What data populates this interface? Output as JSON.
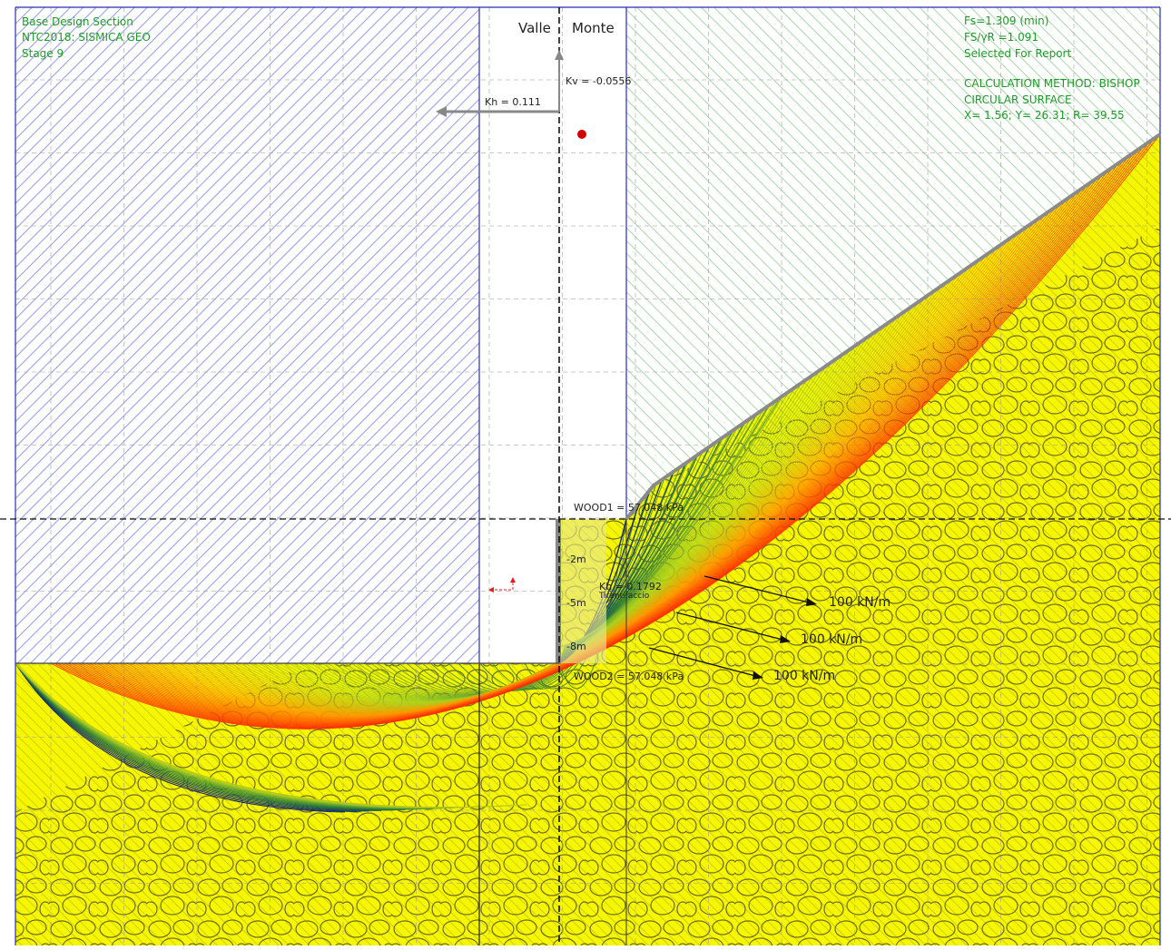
{
  "header_left": {
    "line1": "Base Design Section",
    "line2": "NTC2018: SISMICA GEO",
    "line3": "Stage 9"
  },
  "header_right": {
    "fs": "Fs=1.309 (min)",
    "fsyr": "FS/γR =1.091",
    "selected": "Selected For Report",
    "method": "CALCULATION METHOD: BISHOP",
    "surface": "CIRCULAR SURFACE",
    "coords": "X= 1.56; Y= 26.31; R= 39.55"
  },
  "sides": {
    "valle": "Valle",
    "monte": "Monte"
  },
  "seismic": {
    "kh": "Kh = 0.111",
    "kv": "Kv = -0.0556"
  },
  "wall": {
    "top_label": "WOOD1 = 57.048 kPa",
    "bottom_label": "WOOD2 = 57.048 kPa",
    "depths": [
      "-2m",
      "-5m",
      "-8m"
    ],
    "kh_anchor": "Kh = 0.1792",
    "anchor_name": "Tirantifaccio"
  },
  "loads": [
    "100 kN/m",
    "100 kN/m",
    "100 kN/m"
  ],
  "colors": {
    "annotation": "#1f9a2a",
    "soil_fill": "#f6f600",
    "cut_zone_hatch": "#9aa0e8",
    "slope_hatch": "#a8d8a8",
    "grid": "#9a9a9a",
    "critical_surface": "#10147a",
    "surfaces_high_fs": "#ff2a00",
    "frame": "#2b2bb8",
    "center_marker": "#d40000"
  }
}
